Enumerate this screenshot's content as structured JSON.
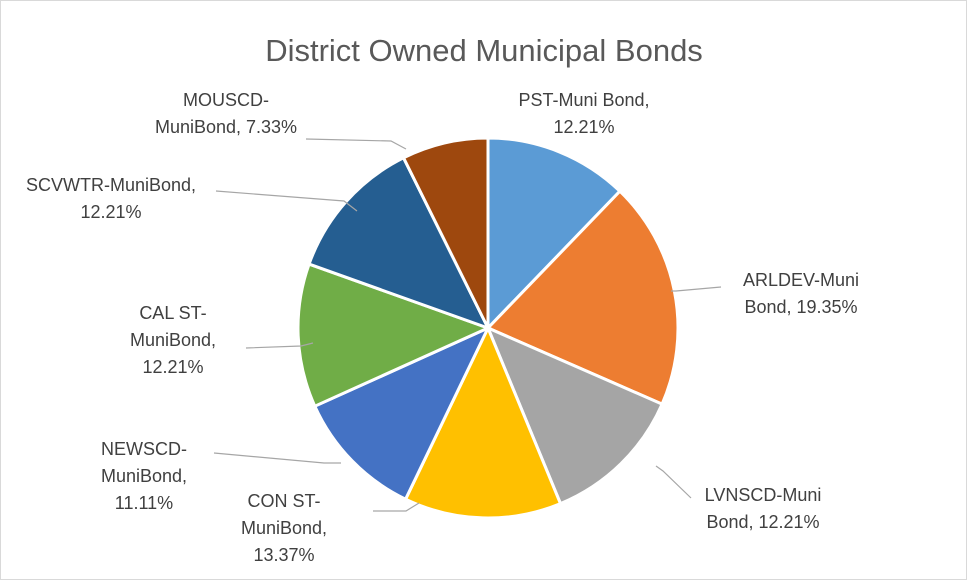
{
  "chart_data": {
    "type": "pie",
    "title": "District Owned Municipal Bonds",
    "start_angle_deg": 0,
    "direction": "clockwise",
    "slices": [
      {
        "label": "PST-Muni Bond",
        "value": 12.21,
        "value_text": "12.21%",
        "color": "#5b9bd5",
        "label_lines": [
          "PST-Muni Bond,",
          "12.21%"
        ]
      },
      {
        "label": "ARLDEV-Muni Bond",
        "value": 19.35,
        "value_text": "19.35%",
        "color": "#ed7d31",
        "label_lines": [
          "ARLDEV-Muni",
          "Bond, 19.35%"
        ]
      },
      {
        "label": "LVNSCD-Muni Bond",
        "value": 12.21,
        "value_text": "12.21%",
        "color": "#a5a5a5",
        "label_lines": [
          "LVNSCD-Muni",
          "Bond, 12.21%"
        ]
      },
      {
        "label": "CON ST-MuniBond",
        "value": 13.37,
        "value_text": "13.37%",
        "color": "#ffc000",
        "label_lines": [
          "CON ST-",
          "MuniBond,",
          "13.37%"
        ]
      },
      {
        "label": "NEWSCD-MuniBond",
        "value": 11.11,
        "value_text": "11.11%",
        "color": "#4472c4",
        "label_lines": [
          "NEWSCD-",
          "MuniBond,",
          "11.11%"
        ]
      },
      {
        "label": "CAL ST-MuniBond",
        "value": 12.21,
        "value_text": "12.21%",
        "color": "#70ad47",
        "label_lines": [
          "CAL ST-",
          "MuniBond,",
          "12.21%"
        ]
      },
      {
        "label": "SCVWTR-MuniBond",
        "value": 12.21,
        "value_text": "12.21%",
        "color": "#255e91",
        "label_lines": [
          "SCVWTR-MuniBond,",
          "12.21%"
        ]
      },
      {
        "label": "MOUSCD-MuniBond",
        "value": 7.33,
        "value_text": "7.33%",
        "color": "#9e480e",
        "label_lines": [
          "MOUSCD-",
          "MuniBond, 7.33%"
        ]
      }
    ]
  }
}
